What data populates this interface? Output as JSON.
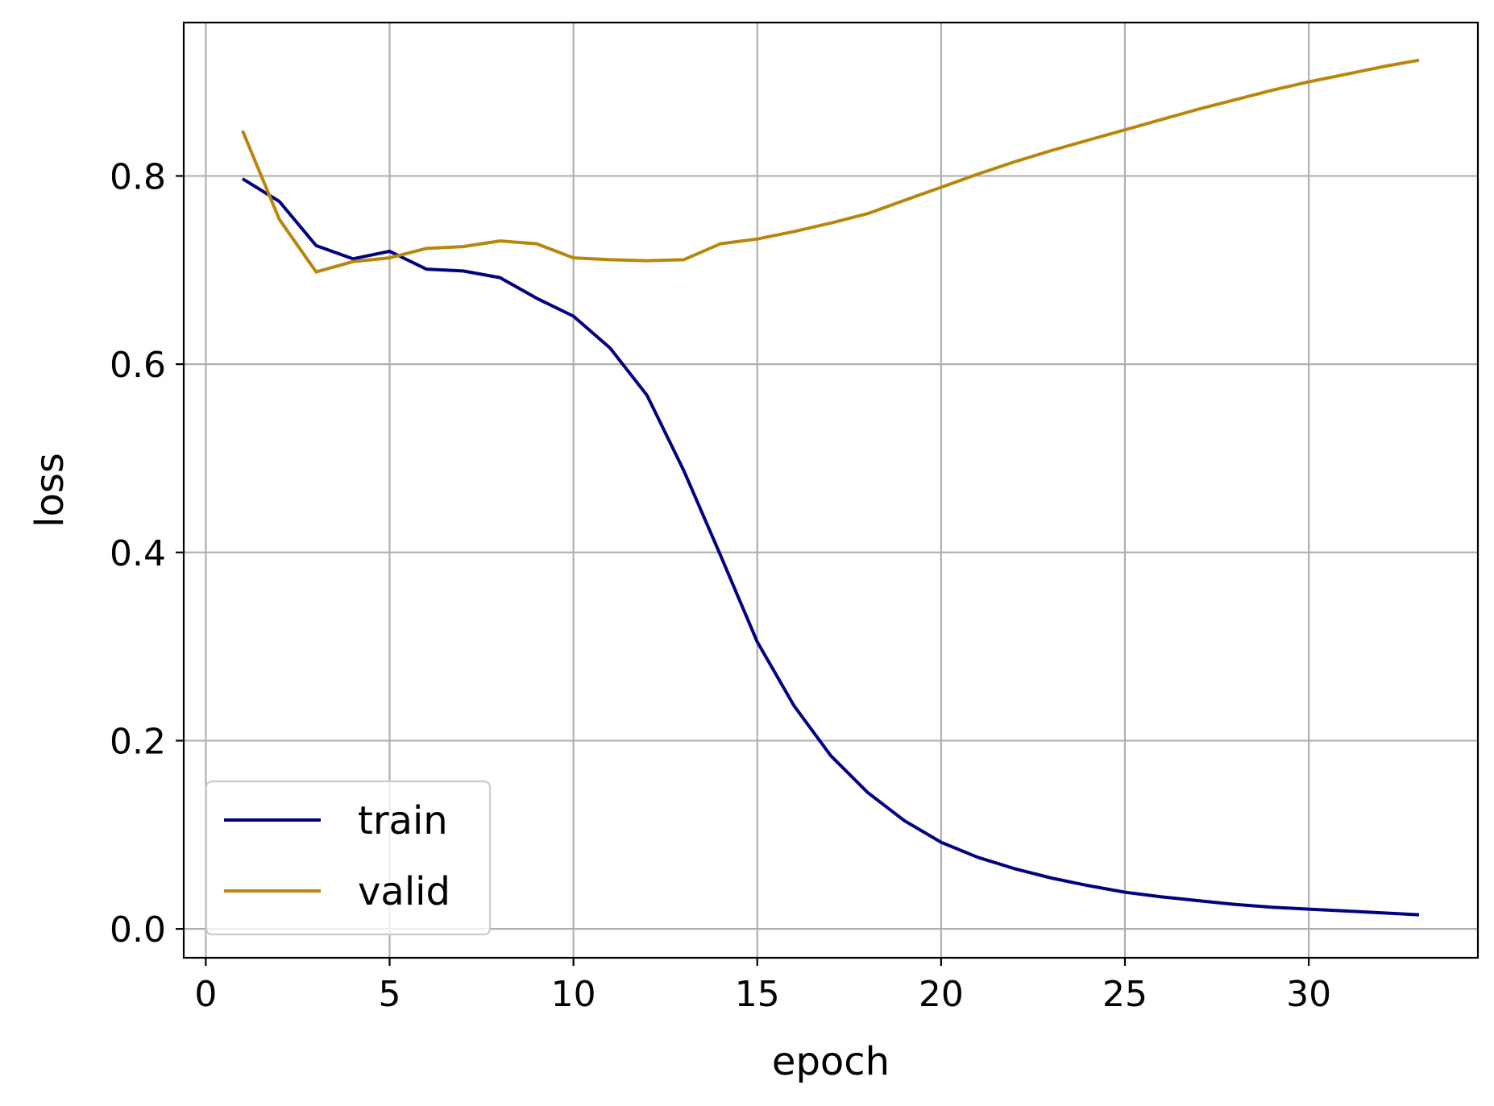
{
  "chart_data": {
    "type": "line",
    "xlabel": "epoch",
    "ylabel": "loss",
    "xlim": [
      -0.6,
      34.6
    ],
    "ylim": [
      -0.0307,
      0.963
    ],
    "xticks": [
      0,
      5,
      10,
      15,
      20,
      25,
      30
    ],
    "xtick_labels": [
      "0",
      "5",
      "10",
      "15",
      "20",
      "25",
      "30"
    ],
    "yticks": [
      0.0,
      0.2,
      0.4,
      0.6,
      0.8
    ],
    "ytick_labels": [
      "0.0",
      "0.2",
      "0.4",
      "0.6",
      "0.8"
    ],
    "grid": true,
    "legend_position": "lower-left",
    "x": [
      1,
      2,
      3,
      4,
      5,
      6,
      7,
      8,
      9,
      10,
      11,
      12,
      13,
      14,
      15,
      16,
      17,
      18,
      19,
      20,
      21,
      22,
      23,
      24,
      25,
      26,
      27,
      28,
      29,
      30,
      31,
      32,
      33
    ],
    "series": [
      {
        "name": "train",
        "color": "#000080",
        "values": [
          0.797,
          0.773,
          0.726,
          0.712,
          0.72,
          0.701,
          0.699,
          0.692,
          0.67,
          0.651,
          0.617,
          0.567,
          0.487,
          0.397,
          0.305,
          0.237,
          0.184,
          0.145,
          0.115,
          0.092,
          0.076,
          0.064,
          0.054,
          0.046,
          0.039,
          0.034,
          0.03,
          0.026,
          0.023,
          0.021,
          0.019,
          0.017,
          0.015
        ]
      },
      {
        "name": "valid",
        "color": "#b8860b",
        "values": [
          0.848,
          0.754,
          0.698,
          0.709,
          0.713,
          0.723,
          0.725,
          0.731,
          0.728,
          0.713,
          0.711,
          0.71,
          0.711,
          0.728,
          0.733,
          0.741,
          0.75,
          0.76,
          0.774,
          0.788,
          0.802,
          0.815,
          0.827,
          0.838,
          0.849,
          0.86,
          0.871,
          0.881,
          0.891,
          0.9,
          0.908,
          0.916,
          0.923
        ]
      }
    ]
  }
}
